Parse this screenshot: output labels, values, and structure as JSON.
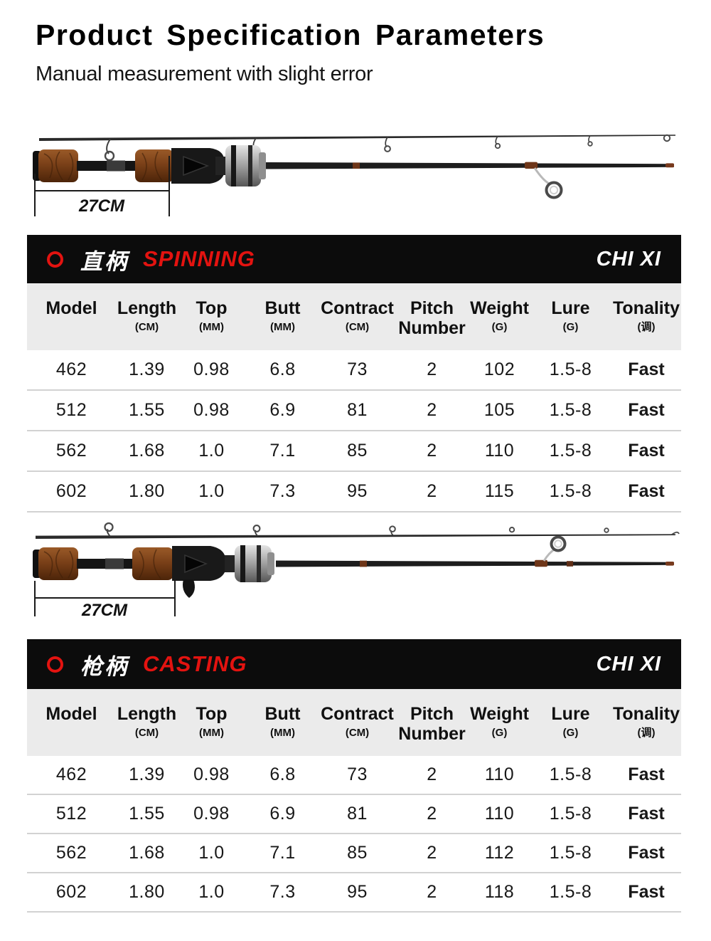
{
  "page": {
    "title": "Product Specification Parameters",
    "subtitle": "Manual measurement with slight error"
  },
  "colors": {
    "accent_red": "#e31310",
    "bar_black": "#0c0c0c",
    "header_gray": "#ebebeb",
    "cork_brown": "#7a4520"
  },
  "rods": [
    {
      "name": "spinning rod two-piece",
      "dimension_label": "27CM"
    },
    {
      "name": "casting rod two-piece",
      "dimension_label": "27CM"
    }
  ],
  "tables": [
    {
      "section_cn": "直柄",
      "section_en": "SPINNING",
      "brand": "CHI XI",
      "columns": [
        {
          "label": "Model",
          "sub": ""
        },
        {
          "label": "Length",
          "sub": "(CM)"
        },
        {
          "label": "Top",
          "sub": "(MM)"
        },
        {
          "label": "Butt",
          "sub": "(MM)"
        },
        {
          "label": "Contract",
          "sub": "(CM)"
        },
        {
          "label": "Pitch",
          "sub": "Number",
          "sub_big": true
        },
        {
          "label": "Weight",
          "sub": "(G)"
        },
        {
          "label": "Lure",
          "sub": "(G)"
        },
        {
          "label": "Tonality",
          "sub": "(调)"
        }
      ],
      "rows": [
        [
          "462",
          "1.39",
          "0.98",
          "6.8",
          "73",
          "2",
          "102",
          "1.5-8",
          "Fast"
        ],
        [
          "512",
          "1.55",
          "0.98",
          "6.9",
          "81",
          "2",
          "105",
          "1.5-8",
          "Fast"
        ],
        [
          "562",
          "1.68",
          "1.0",
          "7.1",
          "85",
          "2",
          "110",
          "1.5-8",
          "Fast"
        ],
        [
          "602",
          "1.80",
          "1.0",
          "7.3",
          "95",
          "2",
          "115",
          "1.5-8",
          "Fast"
        ]
      ]
    },
    {
      "section_cn": "枪柄",
      "section_en": "CASTING",
      "brand": "CHI XI",
      "columns": [
        {
          "label": "Model",
          "sub": ""
        },
        {
          "label": "Length",
          "sub": "(CM)"
        },
        {
          "label": "Top",
          "sub": "(MM)"
        },
        {
          "label": "Butt",
          "sub": "(MM)"
        },
        {
          "label": "Contract",
          "sub": "(CM)"
        },
        {
          "label": "Pitch",
          "sub": "Number",
          "sub_big": true
        },
        {
          "label": "Weight",
          "sub": "(G)"
        },
        {
          "label": "Lure",
          "sub": "(G)"
        },
        {
          "label": "Tonality",
          "sub": "(调)"
        }
      ],
      "rows": [
        [
          "462",
          "1.39",
          "0.98",
          "6.8",
          "73",
          "2",
          "110",
          "1.5-8",
          "Fast"
        ],
        [
          "512",
          "1.55",
          "0.98",
          "6.9",
          "81",
          "2",
          "110",
          "1.5-8",
          "Fast"
        ],
        [
          "562",
          "1.68",
          "1.0",
          "7.1",
          "85",
          "2",
          "112",
          "1.5-8",
          "Fast"
        ],
        [
          "602",
          "1.80",
          "1.0",
          "7.3",
          "95",
          "2",
          "118",
          "1.5-8",
          "Fast"
        ]
      ]
    }
  ]
}
